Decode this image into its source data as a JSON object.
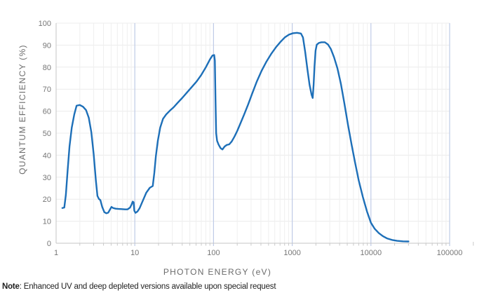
{
  "figure": {
    "y_axis_title": "QUANTUM EFFICIENCY (%)",
    "x_axis_title": "PHOTON ENERGY (eV)",
    "note_label": "Note",
    "note_text": ": Enhanced UV and deep depleted versions available upon special request"
  },
  "colors": {
    "line": "#1d6fb8",
    "decade_gridline": "#bfcbe7",
    "minor_gridline": "#efefef",
    "horizontal_gridline": "#ececec",
    "axis_line": "#c6c6c6",
    "tick_mark": "#c9c9c9",
    "tick_label": "#767676",
    "axis_title": "#6b6b6b"
  },
  "chart_data": {
    "type": "line",
    "title": "",
    "xlabel": "PHOTON ENERGY (eV)",
    "ylabel": "QUANTUM EFFICIENCY (%)",
    "x_scale": "log",
    "xlim": [
      1,
      100000
    ],
    "ylim": [
      0,
      100
    ],
    "y_ticks": [
      0,
      10,
      20,
      30,
      40,
      50,
      60,
      70,
      80,
      90,
      100
    ],
    "x_tick_values": [
      1,
      10,
      100,
      1000,
      10000,
      100000
    ],
    "x_tick_labels": [
      "1",
      "10",
      "100",
      "1000",
      "10000",
      "100000"
    ],
    "grid": {
      "horizontal": true,
      "minor_vertical": true,
      "major_vertical_decades": true
    },
    "legend": "none",
    "series": [
      {
        "name": "quantum-efficiency-curve",
        "color": "#1d6fb8",
        "points": [
          [
            1.2,
            16
          ],
          [
            1.27,
            16.2
          ],
          [
            1.33,
            22
          ],
          [
            1.4,
            33
          ],
          [
            1.48,
            44
          ],
          [
            1.58,
            52.5
          ],
          [
            1.7,
            58.5
          ],
          [
            1.82,
            62.5
          ],
          [
            2.0,
            62.8
          ],
          [
            2.2,
            62
          ],
          [
            2.4,
            60.5
          ],
          [
            2.6,
            57
          ],
          [
            2.8,
            50.5
          ],
          [
            3.0,
            40.5
          ],
          [
            3.2,
            28.5
          ],
          [
            3.35,
            21.5
          ],
          [
            3.5,
            20.1
          ],
          [
            3.65,
            19.6
          ],
          [
            3.85,
            16.5
          ],
          [
            4.1,
            14.1
          ],
          [
            4.35,
            13.6
          ],
          [
            4.6,
            13.9
          ],
          [
            4.85,
            15.4
          ],
          [
            5.05,
            16.5
          ],
          [
            5.3,
            16.0
          ],
          [
            5.7,
            15.7
          ],
          [
            6.2,
            15.6
          ],
          [
            6.8,
            15.5
          ],
          [
            7.5,
            15.4
          ],
          [
            8.1,
            15.4
          ],
          [
            8.7,
            16.2
          ],
          [
            9.1,
            17.6
          ],
          [
            9.4,
            18.9
          ],
          [
            9.65,
            18.6
          ],
          [
            9.85,
            14.8
          ],
          [
            10.2,
            13.8
          ],
          [
            10.8,
            14.4
          ],
          [
            11.5,
            15.9
          ],
          [
            12.6,
            19.2
          ],
          [
            14,
            23
          ],
          [
            15.5,
            25.2
          ],
          [
            16.9,
            26
          ],
          [
            17.7,
            32
          ],
          [
            18.5,
            39.5
          ],
          [
            19.6,
            46.5
          ],
          [
            21,
            52.5
          ],
          [
            22.8,
            56.5
          ],
          [
            25,
            58.5
          ],
          [
            28,
            60.3
          ],
          [
            31,
            61.7
          ],
          [
            35,
            63.8
          ],
          [
            40,
            66
          ],
          [
            46,
            68.5
          ],
          [
            53,
            71
          ],
          [
            61,
            73.5
          ],
          [
            70,
            76.5
          ],
          [
            80,
            80
          ],
          [
            90,
            83.5
          ],
          [
            97,
            85.3
          ],
          [
            102,
            85.5
          ],
          [
            104,
            83
          ],
          [
            106,
            65
          ],
          [
            108,
            50
          ],
          [
            111,
            46.5
          ],
          [
            116,
            44.8
          ],
          [
            123,
            43.2
          ],
          [
            130,
            42.6
          ],
          [
            138,
            43.9
          ],
          [
            148,
            44.7
          ],
          [
            158,
            44.9
          ],
          [
            170,
            46.2
          ],
          [
            185,
            48.5
          ],
          [
            200,
            51
          ],
          [
            220,
            54.5
          ],
          [
            245,
            58.5
          ],
          [
            275,
            63
          ],
          [
            310,
            68
          ],
          [
            355,
            73.5
          ],
          [
            410,
            78.5
          ],
          [
            470,
            82.5
          ],
          [
            540,
            86
          ],
          [
            620,
            89
          ],
          [
            710,
            91.5
          ],
          [
            810,
            93.6
          ],
          [
            910,
            94.8
          ],
          [
            1020,
            95.4
          ],
          [
            1150,
            95.6
          ],
          [
            1290,
            95.3
          ],
          [
            1370,
            93.5
          ],
          [
            1460,
            87
          ],
          [
            1560,
            79
          ],
          [
            1660,
            72
          ],
          [
            1760,
            67.5
          ],
          [
            1820,
            66
          ],
          [
            1870,
            72
          ],
          [
            1920,
            80.5
          ],
          [
            1980,
            87.5
          ],
          [
            2050,
            90.2
          ],
          [
            2180,
            91
          ],
          [
            2350,
            91.3
          ],
          [
            2600,
            91.3
          ],
          [
            2850,
            90.3
          ],
          [
            3100,
            88.2
          ],
          [
            3400,
            84.5
          ],
          [
            3750,
            79.5
          ],
          [
            4150,
            72.5
          ],
          [
            4600,
            63.5
          ],
          [
            5100,
            54
          ],
          [
            5700,
            44.5
          ],
          [
            6300,
            36.5
          ],
          [
            7000,
            28.5
          ],
          [
            7900,
            21
          ],
          [
            8900,
            14.5
          ],
          [
            10000,
            9.3
          ],
          [
            11200,
            6.5
          ],
          [
            12600,
            4.6
          ],
          [
            14200,
            3.2
          ],
          [
            16000,
            2.2
          ],
          [
            18500,
            1.5
          ],
          [
            21500,
            1.1
          ],
          [
            25500,
            0.85
          ],
          [
            30000,
            0.8
          ]
        ]
      }
    ]
  }
}
